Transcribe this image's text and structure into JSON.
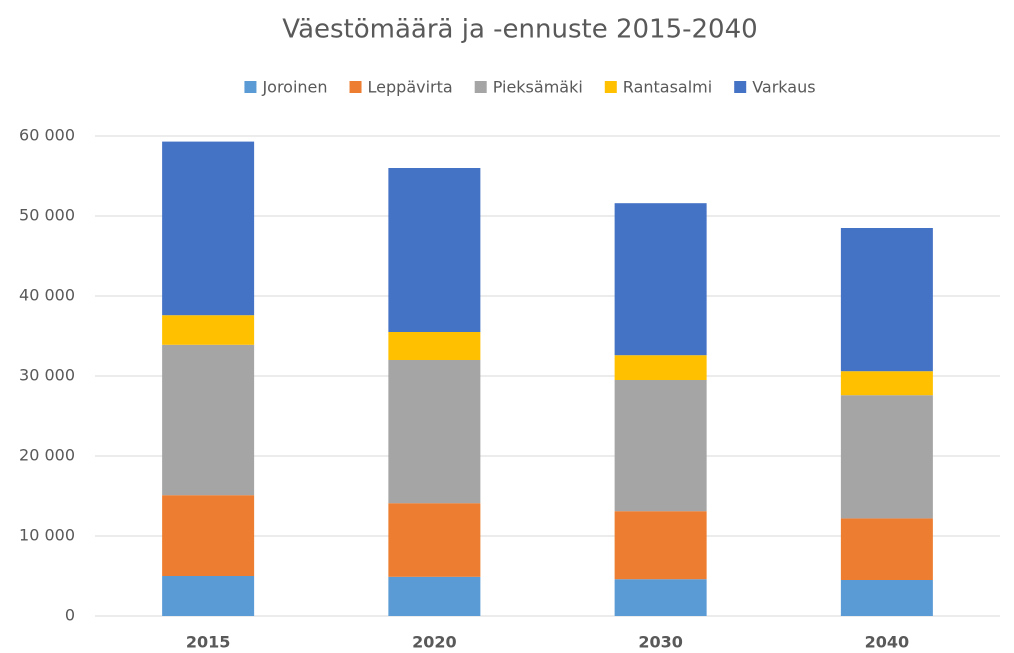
{
  "chart_data": {
    "type": "stacked_bar",
    "title": "Väestömäärä ja -ennuste 2015-2040",
    "categories": [
      "2015",
      "2020",
      "2030",
      "2040"
    ],
    "series": [
      {
        "name": "Joroinen",
        "color": "#5b9bd5",
        "values": [
          5000,
          4900,
          4600,
          4500
        ]
      },
      {
        "name": "Leppävirta",
        "color": "#ed7d31",
        "values": [
          10100,
          9200,
          8500,
          7700
        ]
      },
      {
        "name": "Pieksämäki",
        "color": "#a5a5a5",
        "values": [
          18800,
          17900,
          16400,
          15400
        ]
      },
      {
        "name": "Rantasalmi",
        "color": "#ffc000",
        "values": [
          3700,
          3500,
          3100,
          3000
        ]
      },
      {
        "name": "Varkaus",
        "color": "#4472c4",
        "values": [
          21700,
          20500,
          19000,
          17900
        ]
      }
    ],
    "ylim": [
      0,
      60000
    ],
    "yticks": [
      0,
      {
        "value": 10000,
        "label": "10 000"
      },
      {
        "value": 20000,
        "label": "20 000"
      },
      {
        "value": 30000,
        "label": "30 000"
      },
      {
        "value": 40000,
        "label": "40 000"
      },
      {
        "value": 50000,
        "label": "50 000"
      },
      {
        "value": 60000,
        "label": "60 000"
      }
    ],
    "grid": true,
    "legend": "top"
  }
}
